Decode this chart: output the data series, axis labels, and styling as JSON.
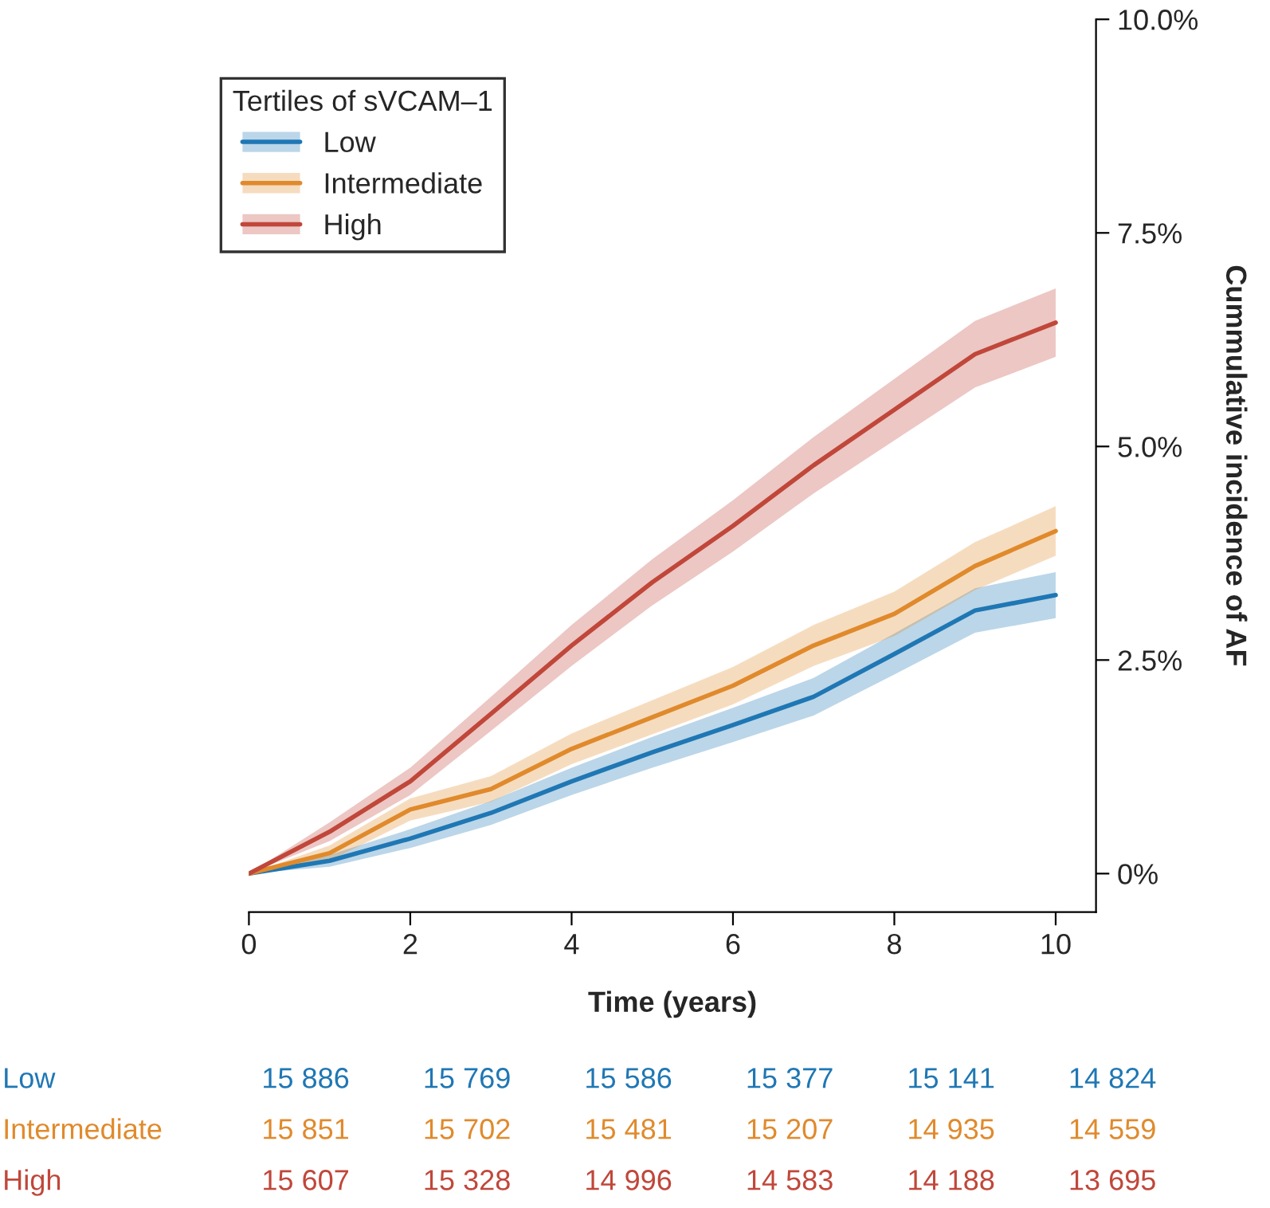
{
  "chart_data": {
    "type": "line",
    "xlabel": "Time (years)",
    "ylabel": "Cummulative incidence of AF",
    "legend_title": "Tertiles of sVCAM–1",
    "legend": "top left",
    "grid": false,
    "x": [
      0,
      1,
      2,
      3,
      4,
      5,
      6,
      7,
      8,
      9,
      10
    ],
    "xlim": [
      0,
      10.5
    ],
    "xticks": [
      0,
      2,
      4,
      6,
      8,
      10
    ],
    "ylim": [
      -0.45,
      10
    ],
    "yticks": [
      {
        "value": 0,
        "label": "0%"
      },
      {
        "value": 2.5,
        "label": "2.5%"
      },
      {
        "value": 5,
        "label": "5.0%"
      },
      {
        "value": 7.5,
        "label": "7.5%"
      },
      {
        "value": 10,
        "label": "10.0%"
      }
    ],
    "series": [
      {
        "name": "Low",
        "color": "#1f77b4",
        "values": [
          0,
          0.15,
          0.41,
          0.71,
          1.08,
          1.42,
          1.74,
          2.07,
          2.57,
          3.08,
          3.26
        ],
        "lower": [
          0,
          0.08,
          0.3,
          0.57,
          0.92,
          1.24,
          1.54,
          1.85,
          2.33,
          2.82,
          2.99
        ],
        "upper": [
          0,
          0.22,
          0.52,
          0.85,
          1.24,
          1.6,
          1.94,
          2.29,
          2.81,
          3.34,
          3.53
        ]
      },
      {
        "name": "Intermediate",
        "color": "#e08a2c",
        "values": [
          0,
          0.24,
          0.75,
          0.99,
          1.46,
          1.83,
          2.2,
          2.67,
          3.04,
          3.6,
          4.01
        ],
        "lower": [
          0,
          0.15,
          0.62,
          0.84,
          1.28,
          1.63,
          1.98,
          2.43,
          2.78,
          3.32,
          3.72
        ],
        "upper": [
          0,
          0.33,
          0.88,
          1.14,
          1.64,
          2.03,
          2.42,
          2.91,
          3.3,
          3.88,
          4.3
        ]
      },
      {
        "name": "High",
        "color": "#c0473a",
        "values": [
          0,
          0.49,
          1.08,
          1.87,
          2.67,
          3.41,
          4.07,
          4.78,
          5.43,
          6.08,
          6.45
        ],
        "lower": [
          0,
          0.38,
          0.92,
          1.67,
          2.43,
          3.14,
          3.77,
          4.45,
          5.07,
          5.69,
          6.05
        ],
        "upper": [
          0,
          0.6,
          1.24,
          2.07,
          2.91,
          3.68,
          4.37,
          5.11,
          5.79,
          6.47,
          6.85
        ]
      }
    ],
    "annotations": [
      "Low",
      "15 886",
      "15 769",
      "15 586",
      "15 377",
      "15 141",
      "14 824",
      "Intermediate",
      "15 851",
      "15 702",
      "15 481",
      "15 207",
      "14 935",
      "14 559",
      "High",
      "15 607",
      "15 328",
      "14 996",
      "14 583",
      "14 188",
      "13 695"
    ]
  }
}
